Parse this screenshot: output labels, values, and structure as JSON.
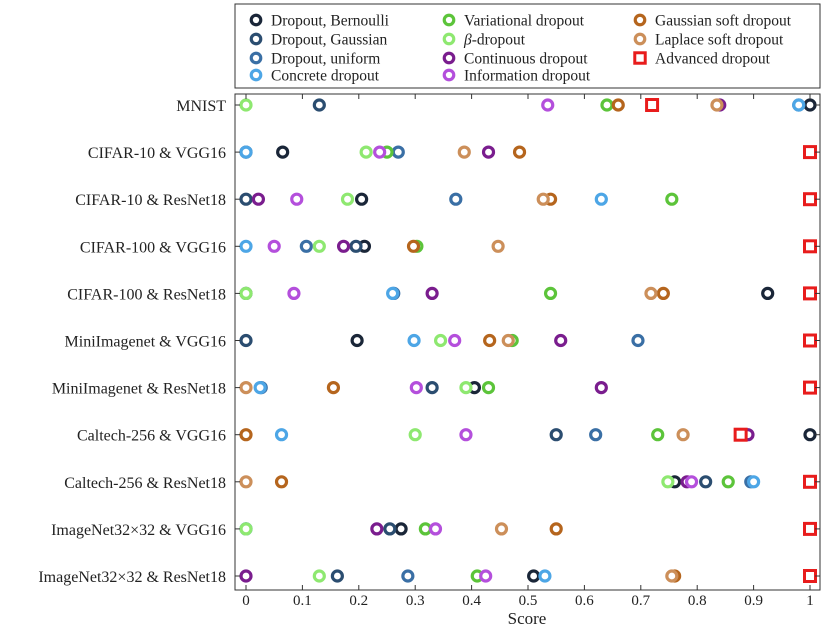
{
  "chart_data": {
    "type": "scatter",
    "title": "",
    "xlabel": "Score",
    "ylabel": "",
    "xlim": [
      0,
      1
    ],
    "xticks": [
      0,
      0.1,
      0.2,
      0.3,
      0.4,
      0.5,
      0.6,
      0.7,
      0.8,
      0.9,
      1
    ],
    "xtick_labels": [
      "0",
      "0.1",
      "0.2",
      "0.3",
      "0.4",
      "0.5",
      "0.6",
      "0.7",
      "0.8",
      "0.9",
      "1"
    ],
    "grid": false,
    "legend_placement": "top",
    "categories": [
      "MNIST",
      "CIFAR-10 & VGG16",
      "CIFAR-10 & ResNet18",
      "CIFAR-100 & VGG16",
      "CIFAR-100 & ResNet18",
      "MiniImagenet & VGG16",
      "MiniImagenet & ResNet18",
      "Caltech-256 & VGG16",
      "Caltech-256 & ResNet18",
      "ImageNet32×32 & VGG16",
      "ImageNet32×32 & ResNet18"
    ],
    "series": [
      {
        "name": "Dropout, Bernoulli",
        "legend_prefix": "",
        "legend_rest": "Dropout, Bernoulli",
        "color": "#1a2638",
        "marker": "circle",
        "values": [
          1.0,
          0.065,
          0.205,
          0.21,
          0.925,
          0.197,
          0.405,
          1.0,
          0.76,
          0.275,
          0.51
        ]
      },
      {
        "name": "Dropout, Gaussian",
        "legend_prefix": "",
        "legend_rest": "Dropout, Gaussian",
        "color": "#2b4d70",
        "marker": "circle",
        "values": [
          0.13,
          0.0,
          0.0,
          0.195,
          0.0,
          0.0,
          0.33,
          0.55,
          0.815,
          0.255,
          0.162
        ]
      },
      {
        "name": "Dropout, uniform",
        "legend_prefix": "",
        "legend_rest": "Dropout, uniform",
        "color": "#3a6fa5",
        "marker": "circle",
        "values": [
          0.98,
          0.27,
          0.372,
          0.107,
          0.262,
          0.695,
          0.027,
          0.62,
          0.895,
          0.0,
          0.287
        ]
      },
      {
        "name": "Concrete dropout",
        "legend_prefix": "",
        "legend_rest": "Concrete dropout",
        "color": "#4da6e6",
        "marker": "circle",
        "values": [
          0.98,
          0.0,
          0.63,
          0.0,
          0.26,
          0.298,
          0.025,
          0.063,
          0.9,
          0.0,
          0.53
        ]
      },
      {
        "name": "Variational dropout",
        "legend_prefix": "",
        "legend_rest": "Variational dropout",
        "color": "#5cc43a",
        "marker": "circle",
        "values": [
          0.64,
          0.25,
          0.755,
          0.303,
          0.54,
          0.472,
          0.43,
          0.73,
          0.855,
          0.318,
          0.41
        ]
      },
      {
        "name": "β-dropout",
        "legend_prefix": "β",
        "legend_rest": "-dropout",
        "color": "#8ee870",
        "marker": "circle",
        "values": [
          0.0,
          0.213,
          0.18,
          0.13,
          0.0,
          0.345,
          0.39,
          0.3,
          0.748,
          0.0,
          0.13
        ]
      },
      {
        "name": "Continuous dropout",
        "legend_prefix": "",
        "legend_rest": "Continuous dropout",
        "color": "#7a1d8e",
        "marker": "circle",
        "values": [
          0.84,
          0.43,
          0.022,
          0.173,
          0.33,
          0.558,
          0.63,
          0.89,
          0.782,
          0.232,
          0.0
        ]
      },
      {
        "name": "Information dropout",
        "legend_prefix": "",
        "legend_rest": "Information dropout",
        "color": "#b44fdc",
        "marker": "circle",
        "values": [
          0.535,
          0.237,
          0.09,
          0.05,
          0.085,
          0.37,
          0.302,
          0.39,
          0.79,
          0.336,
          0.425
        ]
      },
      {
        "name": "Gaussian soft dropout",
        "legend_prefix": "",
        "legend_rest": "Gaussian soft dropout",
        "color": "#b5651d",
        "marker": "circle",
        "values": [
          0.66,
          0.485,
          0.54,
          0.297,
          0.74,
          0.432,
          0.155,
          0.0,
          0.063,
          0.55,
          0.76
        ]
      },
      {
        "name": "Laplace soft dropout",
        "legend_prefix": "",
        "legend_rest": "Laplace soft dropout",
        "color": "#cc8f5a",
        "marker": "circle",
        "values": [
          0.835,
          0.387,
          0.527,
          0.447,
          0.718,
          0.465,
          0.0,
          0.775,
          0.0,
          0.453,
          0.755
        ]
      },
      {
        "name": "Advanced dropout",
        "legend_prefix": "",
        "legend_rest": "Advanced dropout",
        "color": "#e81c1c",
        "marker": "square",
        "values": [
          0.72,
          1.0,
          1.0,
          1.0,
          1.0,
          1.0,
          1.0,
          0.877,
          1.0,
          1.0,
          1.0
        ]
      }
    ]
  }
}
